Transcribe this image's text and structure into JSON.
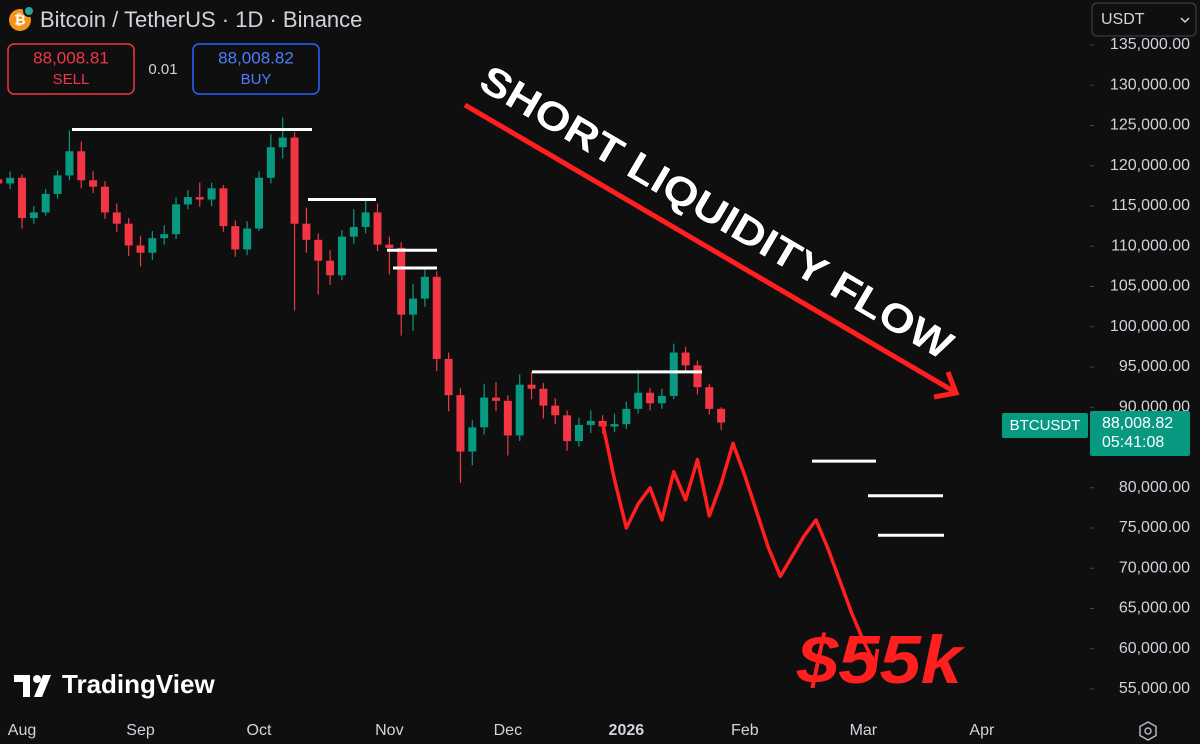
{
  "chart_data": {
    "type": "candlestick",
    "title": "Bitcoin / TetherUS · 1D · Binance",
    "sell": {
      "price": "88,008.81",
      "label": "SELL"
    },
    "spread": "0.01",
    "buy": {
      "price": "88,008.82",
      "label": "BUY"
    },
    "currency": "USDT",
    "symbol_tag": "BTCUSDT",
    "price_tag": {
      "price": "88,008.82",
      "countdown": "05:41:08"
    },
    "annotation": "SHORT LIQUIDITY FLOW",
    "target_label": "$55k",
    "watermark": "TradingView",
    "up_color": "#089981",
    "down_color": "#f23645",
    "categories": [
      "",
      null,
      "Aug",
      null,
      null,
      null,
      null,
      null,
      null,
      null,
      null,
      null,
      "Sep",
      null,
      null,
      null,
      null,
      null,
      null,
      null,
      null,
      null,
      "Oct",
      null,
      null,
      null,
      null,
      null,
      null,
      null,
      null,
      null,
      null,
      "Nov",
      null,
      null,
      null,
      null,
      null,
      null,
      null,
      null,
      null,
      "Dec",
      null,
      null,
      null,
      null,
      null,
      null,
      null,
      null,
      null,
      "2026",
      null,
      null,
      null,
      null,
      null,
      null,
      null,
      null,
      null,
      "Feb",
      null,
      null,
      null,
      null,
      null,
      null,
      null,
      null,
      null,
      "Mar",
      null,
      null,
      null,
      null,
      null,
      null,
      null,
      null,
      null,
      "Apr",
      null
    ],
    "open": [
      118300,
      117800,
      118500,
      113500,
      114200,
      116500,
      118800,
      121800,
      118200,
      117400,
      114200,
      112800,
      110100,
      109200,
      111000,
      111500,
      115200,
      116100,
      115800,
      117200,
      112500,
      109600,
      112200,
      118500,
      122300,
      123500,
      112800,
      110800,
      108200,
      106400,
      111200,
      112400,
      114200,
      110200,
      109800,
      101500,
      103500,
      106200,
      96000,
      91500,
      84500,
      87500,
      91200,
      90800,
      86500,
      92800,
      92300,
      90200,
      89000,
      85800,
      87800,
      88300,
      87600,
      87900,
      89800,
      91800,
      90500,
      91400,
      96800,
      95200,
      92500,
      89800,
      null,
      null,
      null,
      null,
      null,
      null,
      null,
      null,
      null,
      null,
      null,
      null,
      null,
      null,
      null,
      null,
      null,
      null,
      null,
      null,
      null,
      null,
      null
    ],
    "high": [
      119200,
      119300,
      118900,
      115000,
      117100,
      119400,
      124400,
      123000,
      119300,
      118100,
      115300,
      113500,
      111300,
      111900,
      112600,
      116100,
      117000,
      117900,
      117900,
      117600,
      113200,
      113100,
      119300,
      123900,
      126000,
      124200,
      114800,
      111600,
      109500,
      112000,
      114600,
      116000,
      115300,
      111200,
      110500,
      105300,
      107400,
      106900,
      96800,
      92400,
      88400,
      92900,
      93100,
      91500,
      94100,
      94400,
      93000,
      91100,
      89600,
      88700,
      89600,
      89000,
      89200,
      90700,
      94600,
      92400,
      92300,
      97900,
      97500,
      95800,
      92900,
      90000,
      null,
      null,
      null,
      null,
      null,
      null,
      null,
      null,
      null,
      null,
      null,
      null,
      null,
      null,
      null,
      null,
      null,
      null,
      null,
      null,
      null,
      null,
      null
    ],
    "low": [
      117000,
      117100,
      112200,
      112800,
      113800,
      115900,
      118200,
      117200,
      116600,
      113400,
      111800,
      108800,
      107500,
      108300,
      110200,
      110900,
      114600,
      114900,
      115000,
      111800,
      108700,
      108900,
      111900,
      117800,
      120900,
      102000,
      109200,
      104000,
      105200,
      105800,
      110300,
      111600,
      109400,
      106500,
      98900,
      99500,
      102500,
      94500,
      89500,
      80600,
      82800,
      86600,
      89500,
      84000,
      85800,
      91000,
      88600,
      87900,
      84600,
      85100,
      86800,
      86700,
      86900,
      87300,
      89200,
      89600,
      89800,
      91000,
      94300,
      91600,
      89100,
      87200,
      null,
      null,
      null,
      null,
      null,
      null,
      null,
      null,
      null,
      null,
      null,
      null,
      null,
      null,
      null,
      null,
      null,
      null,
      null,
      null,
      null,
      null,
      null
    ],
    "close": [
      117800,
      118500,
      113500,
      114200,
      116500,
      118800,
      121800,
      118200,
      117400,
      114200,
      112800,
      110100,
      109200,
      111000,
      111500,
      115200,
      116100,
      115800,
      117200,
      112500,
      109600,
      112200,
      118500,
      122300,
      123500,
      112800,
      110800,
      108200,
      106400,
      111200,
      112400,
      114200,
      110200,
      109800,
      101500,
      103500,
      106200,
      96000,
      91500,
      84500,
      87500,
      91200,
      90800,
      86500,
      92800,
      92300,
      90200,
      89000,
      85800,
      87800,
      88300,
      87600,
      87900,
      89800,
      91800,
      90500,
      91400,
      96800,
      95200,
      92500,
      89800,
      88100,
      null,
      null,
      null,
      null,
      null,
      null,
      null,
      null,
      null,
      null,
      null,
      null,
      null,
      null,
      null,
      null,
      null,
      null,
      null,
      null,
      null,
      null,
      null
    ],
    "projection": {
      "color": "#ff1f1f",
      "values": [
        null,
        null,
        null,
        null,
        null,
        null,
        null,
        null,
        null,
        null,
        null,
        null,
        null,
        null,
        null,
        null,
        null,
        null,
        null,
        null,
        null,
        null,
        null,
        null,
        null,
        null,
        null,
        null,
        null,
        null,
        null,
        null,
        null,
        null,
        null,
        null,
        null,
        null,
        null,
        null,
        null,
        null,
        null,
        null,
        null,
        null,
        null,
        null,
        null,
        null,
        null,
        88000,
        81000,
        75000,
        78000,
        80000,
        76000,
        82000,
        78500,
        83500,
        76500,
        80500,
        85500,
        81500,
        77000,
        72500,
        69000,
        71500,
        74000,
        76000,
        72500,
        68500,
        64500,
        61000,
        58000
      ]
    },
    "levels": [
      124500,
      115800,
      109500,
      107300,
      94400,
      83300,
      79000,
      74100
    ],
    "ylim": [
      51770,
      140590
    ],
    "yticks": [
      {
        "value": 55000,
        "label": "55,000.00"
      },
      {
        "value": 60000,
        "label": "60,000.00"
      },
      {
        "value": 65000,
        "label": "65,000.00"
      },
      {
        "value": 70000,
        "label": "70,000.00"
      },
      {
        "value": 75000,
        "label": "75,000.00"
      },
      {
        "value": 80000,
        "label": "80,000.00"
      },
      {
        "value": 90000,
        "label": "90,000.00"
      },
      {
        "value": 95000,
        "label": "95,000.00"
      },
      {
        "value": 100000,
        "label": "100,000.00"
      },
      {
        "value": 105000,
        "label": "105,000.00"
      },
      {
        "value": 110000,
        "label": "110,000.00"
      },
      {
        "value": 115000,
        "label": "115,000.00"
      },
      {
        "value": 120000,
        "label": "120,000.00"
      },
      {
        "value": 125000,
        "label": "125,000.00"
      },
      {
        "value": 130000,
        "label": "130,000.00"
      },
      {
        "value": 135000,
        "label": "135,000.00"
      }
    ]
  }
}
